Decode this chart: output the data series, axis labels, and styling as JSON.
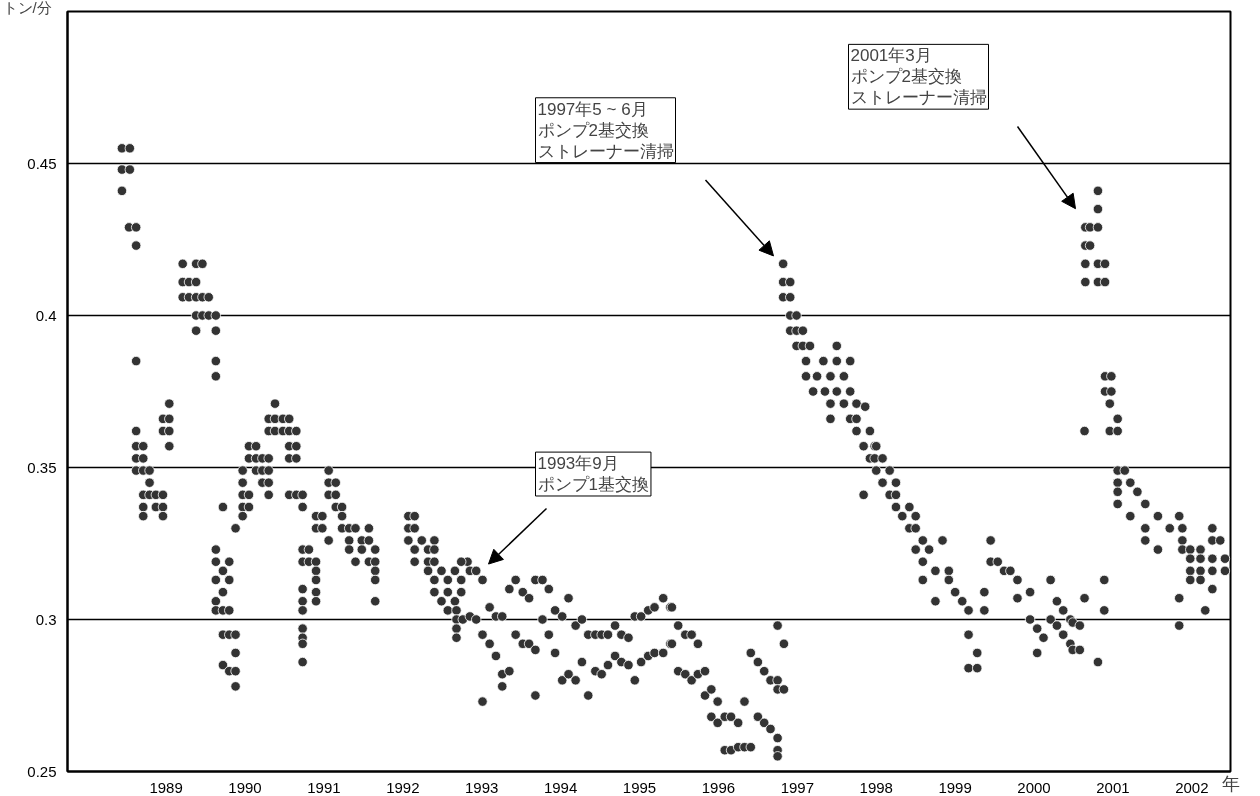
{
  "chart_data": {
    "type": "scatter",
    "ylabel": "トン/分",
    "xlabel": "年",
    "xlim": [
      1987.75,
      2002.49
    ],
    "ylim": [
      0.25,
      0.5
    ],
    "xticks": [
      1989,
      1990,
      1991,
      1992,
      1993,
      1994,
      1995,
      1996,
      1997,
      1998,
      1999,
      2000,
      2001,
      2002
    ],
    "yticks": [
      0.25,
      0.3,
      0.35,
      0.4,
      0.45
    ],
    "grid": "y",
    "marker": "circle",
    "annotations": [
      "1993年9月ポンプ1基交換",
      "1997年5 ~ 6月ポンプ2基交換ストレーナー清掃",
      "2001年3月ポンプ2基交換ストレーナー清掃"
    ],
    "series": [
      {
        "color": "#333333",
        "x": [
          1988.44,
          1988.54,
          1988.44,
          1988.54,
          1988.44,
          1988.53,
          1988.62,
          1988.62,
          1988.62,
          1988.62,
          1988.62,
          1988.71,
          1988.62,
          1988.71,
          1988.62,
          1988.71,
          1988.79,
          1988.79,
          1988.71,
          1988.79,
          1988.87,
          1988.96,
          1988.71,
          1988.87,
          1988.96,
          1988.71,
          1988.96,
          1989.04,
          1988.96,
          1989.04,
          1988.96,
          1989.04,
          1989.04,
          1989.21,
          1989.38,
          1989.46,
          1989.21,
          1989.29,
          1989.38,
          1989.21,
          1989.29,
          1989.38,
          1989.46,
          1989.54,
          1989.38,
          1989.46,
          1989.54,
          1989.63,
          1989.38,
          1989.63,
          1989.63,
          1989.63,
          1989.63,
          1989.63,
          1989.8,
          1989.72,
          1989.63,
          1989.8,
          1989.72,
          1989.63,
          1989.63,
          1989.72,
          1989.8,
          1989.72,
          1989.8,
          1989.88,
          1989.72,
          1989.8,
          1989.88,
          1989.88,
          1989.88,
          1989.72,
          1989.88,
          1989.97,
          1989.97,
          1989.97,
          1990.05,
          1989.97,
          1990.05,
          1989.97,
          1990.05,
          1990.14,
          1990.05,
          1990.14,
          1990.22,
          1990.3,
          1990.14,
          1990.22,
          1990.3,
          1990.22,
          1990.3,
          1990.3,
          1990.38,
          1990.3,
          1990.38,
          1990.3,
          1990.38,
          1990.48,
          1990.56,
          1990.48,
          1990.56,
          1990.65,
          1990.56,
          1990.65,
          1990.56,
          1990.65,
          1990.56,
          1990.65,
          1990.73,
          1990.73,
          1990.9,
          1990.98,
          1990.9,
          1990.98,
          1991.06,
          1990.73,
          1990.81,
          1990.73,
          1990.81,
          1990.9,
          1990.9,
          1990.9,
          1990.9,
          1990.9,
          1990.73,
          1990.73,
          1990.73,
          1990.73,
          1990.73,
          1990.73,
          1990.73,
          1991.06,
          1991.06,
          1991.15,
          1991.06,
          1991.15,
          1991.15,
          1991.23,
          1991.23,
          1991.23,
          1991.32,
          1991.4,
          1991.57,
          1991.32,
          1991.48,
          1991.57,
          1991.32,
          1991.48,
          1991.65,
          1991.4,
          1991.57,
          1991.65,
          1991.65,
          1991.65,
          1991.65,
          1992.07,
          1992.15,
          1992.07,
          1992.15,
          1992.07,
          1992.24,
          1992.4,
          1992.15,
          1992.32,
          1992.4,
          1992.15,
          1992.32,
          1992.4,
          1992.32,
          1992.49,
          1992.66,
          1992.4,
          1992.57,
          1992.74,
          1992.4,
          1992.57,
          1992.74,
          1992.49,
          1992.66,
          1992.57,
          1992.68,
          1992.68,
          1992.76,
          1992.68,
          1992.68,
          1992.82,
          1992.74,
          1992.85,
          1992.85,
          1992.93,
          1992.93,
          1993.01,
          1993.01,
          1993.01,
          1993.1,
          1993.1,
          1993.18,
          1993.18,
          1993.26,
          1993.26,
          1993.26,
          1993.35,
          1993.35,
          1993.43,
          1993.43,
          1993.52,
          1993.52,
          1993.6,
          1993.6,
          1993.68,
          1993.68,
          1993.68,
          1993.77,
          1993.77,
          1993.85,
          1993.85,
          1993.93,
          1993.93,
          1994.02,
          1994.02,
          1994.1,
          1994.1,
          1994.19,
          1994.19,
          1994.27,
          1994.27,
          1994.35,
          1994.35,
          1994.44,
          1994.44,
          1994.52,
          1994.52,
          1994.6,
          1994.6,
          1994.69,
          1994.69,
          1994.77,
          1994.77,
          1994.86,
          1994.86,
          1994.94,
          1994.94,
          1995.02,
          1995.02,
          1995.11,
          1995.11,
          1995.19,
          1995.19,
          1995.3,
          1995.3,
          1995.39,
          1995.39,
          1995.41,
          1995.41,
          1995.49,
          1995.49,
          1995.58,
          1995.58,
          1995.66,
          1995.66,
          1995.74,
          1995.74,
          1995.83,
          1995.83,
          1995.91,
          1995.91,
          1995.99,
          1995.99,
          1996.08,
          1996.08,
          1996.16,
          1996.16,
          1996.25,
          1996.25,
          1996.33,
          1996.33,
          1996.41,
          1996.41,
          1996.5,
          1996.5,
          1996.58,
          1996.58,
          1996.66,
          1996.66,
          1996.75,
          1996.75,
          1996.75,
          1996.75,
          1996.75,
          1996.75,
          1996.83,
          1996.83,
          1996.82,
          1996.82,
          1996.91,
          1996.82,
          1996.91,
          1996.91,
          1996.99,
          1996.91,
          1996.99,
          1997.07,
          1996.99,
          1997.07,
          1997.16,
          1997.5,
          1997.11,
          1997.33,
          1997.5,
          1997.67,
          1997.11,
          1997.25,
          1997.42,
          1997.59,
          1997.2,
          1997.35,
          1997.5,
          1997.67,
          1997.42,
          1997.42,
          1997.59,
          1997.75,
          1997.67,
          1997.75,
          1997.75,
          1997.92,
          1997.84,
          1997.98,
          1997.92,
          1997.98,
          1997.84,
          1997.86,
          1998.0,
          1998.0,
          1998.08,
          1998.08,
          1998.17,
          1998.17,
          1998.25,
          1998.25,
          1998.25,
          1998.42,
          1998.33,
          1998.5,
          1998.42,
          1998.5,
          1998.59,
          1998.5,
          1998.67,
          1998.59,
          1998.59,
          1998.75,
          1998.92,
          1998.75,
          1998.84,
          1998.92,
          1999.0,
          1999.09,
          1999.17,
          1999.17,
          1999.28,
          1999.17,
          1999.28,
          1999.37,
          1999.37,
          1999.45,
          1999.45,
          1999.54,
          1999.62,
          1999.7,
          1999.79,
          1999.79,
          1999.95,
          1999.95,
          2000.04,
          2000.04,
          2000.12,
          2000.21,
          2000.21,
          2000.29,
          2000.29,
          2000.37,
          2000.37,
          2000.46,
          2000.46,
          2000.49,
          2000.49,
          2000.58,
          2000.58,
          2000.64,
          2000.64,
          2000.65,
          2000.71,
          2000.81,
          2000.65,
          2000.71,
          2000.65,
          2000.81,
          2000.9,
          2000.65,
          2000.81,
          2000.9,
          2000.81,
          2000.81,
          2000.81,
          2000.89,
          2000.89,
          2000.9,
          2000.98,
          2000.9,
          2000.98,
          2000.96,
          2001.06,
          2000.96,
          2001.06,
          2001.06,
          2001.15,
          2001.06,
          2001.22,
          2001.06,
          2001.31,
          2001.06,
          2001.41,
          2001.22,
          2001.57,
          2001.84,
          2001.41,
          2001.72,
          2001.88,
          2001.41,
          2001.88,
          2001.57,
          2001.88,
          2001.98,
          2002.11,
          2001.98,
          2002.11,
          2001.98,
          2002.11,
          2001.98,
          2002.11,
          2001.84,
          2001.84,
          2002.17,
          2002.26,
          2002.26,
          2002.36,
          2002.26,
          2002.42,
          2002.26,
          2002.42,
          2002.26
        ],
        "values": [
          0.455,
          0.455,
          0.448,
          0.448,
          0.441,
          0.429,
          0.429,
          0.423,
          0.385,
          0.362,
          0.357,
          0.357,
          0.353,
          0.353,
          0.349,
          0.349,
          0.349,
          0.345,
          0.341,
          0.341,
          0.341,
          0.341,
          0.337,
          0.337,
          0.337,
          0.334,
          0.334,
          0.371,
          0.366,
          0.366,
          0.362,
          0.362,
          0.357,
          0.417,
          0.417,
          0.417,
          0.411,
          0.411,
          0.411,
          0.406,
          0.406,
          0.406,
          0.406,
          0.406,
          0.4,
          0.4,
          0.4,
          0.4,
          0.395,
          0.395,
          0.385,
          0.38,
          0.323,
          0.319,
          0.319,
          0.316,
          0.313,
          0.313,
          0.309,
          0.306,
          0.303,
          0.303,
          0.303,
          0.295,
          0.295,
          0.295,
          0.285,
          0.283,
          0.289,
          0.283,
          0.278,
          0.337,
          0.33,
          0.349,
          0.345,
          0.341,
          0.341,
          0.337,
          0.337,
          0.334,
          0.357,
          0.357,
          0.353,
          0.353,
          0.353,
          0.353,
          0.349,
          0.349,
          0.349,
          0.345,
          0.345,
          0.341,
          0.371,
          0.366,
          0.366,
          0.362,
          0.362,
          0.366,
          0.366,
          0.362,
          0.362,
          0.362,
          0.357,
          0.357,
          0.353,
          0.353,
          0.341,
          0.341,
          0.341,
          0.337,
          0.334,
          0.334,
          0.33,
          0.33,
          0.326,
          0.323,
          0.323,
          0.319,
          0.319,
          0.319,
          0.316,
          0.313,
          0.309,
          0.306,
          0.31,
          0.306,
          0.303,
          0.297,
          0.294,
          0.292,
          0.286,
          0.349,
          0.345,
          0.345,
          0.341,
          0.341,
          0.337,
          0.337,
          0.334,
          0.33,
          0.33,
          0.33,
          0.33,
          0.326,
          0.326,
          0.326,
          0.323,
          0.323,
          0.323,
          0.319,
          0.319,
          0.319,
          0.316,
          0.313,
          0.306,
          0.334,
          0.334,
          0.33,
          0.33,
          0.326,
          0.326,
          0.326,
          0.323,
          0.323,
          0.323,
          0.319,
          0.319,
          0.319,
          0.316,
          0.316,
          0.316,
          0.313,
          0.313,
          0.313,
          0.309,
          0.309,
          0.309,
          0.306,
          0.306,
          0.303,
          0.303,
          0.3,
          0.3,
          0.297,
          0.294,
          0.319,
          0.319,
          0.316,
          0.301,
          0.316,
          0.3,
          0.313,
          0.295,
          0.273,
          0.304,
          0.292,
          0.301,
          0.288,
          0.301,
          0.282,
          0.278,
          0.31,
          0.283,
          0.313,
          0.295,
          0.309,
          0.292,
          0.307,
          0.292,
          0.313,
          0.29,
          0.275,
          0.313,
          0.3,
          0.31,
          0.295,
          0.303,
          0.289,
          0.301,
          0.28,
          0.307,
          0.282,
          0.298,
          0.28,
          0.3,
          0.286,
          0.295,
          0.275,
          0.295,
          0.283,
          0.295,
          0.282,
          0.295,
          0.285,
          0.298,
          0.288,
          0.295,
          0.286,
          0.294,
          0.285,
          0.301,
          0.28,
          0.301,
          0.286,
          0.303,
          0.288,
          0.304,
          0.289,
          0.307,
          0.289,
          0.304,
          0.292,
          0.304,
          0.292,
          0.298,
          0.283,
          0.295,
          0.282,
          0.295,
          0.28,
          0.292,
          0.282,
          0.283,
          0.275,
          0.277,
          0.268,
          0.273,
          0.266,
          0.268,
          0.257,
          0.268,
          0.257,
          0.266,
          0.258,
          0.273,
          0.258,
          0.289,
          0.258,
          0.286,
          0.268,
          0.283,
          0.266,
          0.28,
          0.264,
          0.298,
          0.28,
          0.277,
          0.261,
          0.257,
          0.255,
          0.292,
          0.277,
          0.417,
          0.411,
          0.411,
          0.406,
          0.406,
          0.4,
          0.4,
          0.395,
          0.395,
          0.395,
          0.39,
          0.39,
          0.39,
          0.39,
          0.385,
          0.385,
          0.385,
          0.385,
          0.38,
          0.38,
          0.38,
          0.38,
          0.375,
          0.375,
          0.375,
          0.375,
          0.371,
          0.366,
          0.371,
          0.371,
          0.366,
          0.366,
          0.362,
          0.362,
          0.357,
          0.357,
          0.353,
          0.353,
          0.341,
          0.37,
          0.357,
          0.349,
          0.353,
          0.345,
          0.349,
          0.341,
          0.345,
          0.341,
          0.337,
          0.337,
          0.334,
          0.334,
          0.33,
          0.33,
          0.326,
          0.323,
          0.323,
          0.319,
          0.313,
          0.316,
          0.316,
          0.306,
          0.326,
          0.313,
          0.309,
          0.306,
          0.303,
          0.295,
          0.289,
          0.284,
          0.284,
          0.309,
          0.303,
          0.326,
          0.319,
          0.319,
          0.316,
          0.316,
          0.313,
          0.307,
          0.309,
          0.3,
          0.297,
          0.289,
          0.294,
          0.313,
          0.3,
          0.306,
          0.298,
          0.303,
          0.295,
          0.3,
          0.292,
          0.299,
          0.29,
          0.298,
          0.29,
          0.307,
          0.362,
          0.429,
          0.429,
          0.429,
          0.423,
          0.423,
          0.417,
          0.417,
          0.417,
          0.411,
          0.411,
          0.411,
          0.441,
          0.435,
          0.286,
          0.313,
          0.303,
          0.38,
          0.38,
          0.375,
          0.375,
          0.371,
          0.366,
          0.362,
          0.362,
          0.349,
          0.349,
          0.345,
          0.345,
          0.342,
          0.342,
          0.338,
          0.338,
          0.334,
          0.334,
          0.334,
          0.33,
          0.33,
          0.33,
          0.326,
          0.326,
          0.323,
          0.323,
          0.323,
          0.323,
          0.32,
          0.32,
          0.316,
          0.316,
          0.313,
          0.313,
          0.307,
          0.298,
          0.303,
          0.33,
          0.326,
          0.326,
          0.32,
          0.32,
          0.316,
          0.316,
          0.31
        ]
      }
    ]
  }
}
